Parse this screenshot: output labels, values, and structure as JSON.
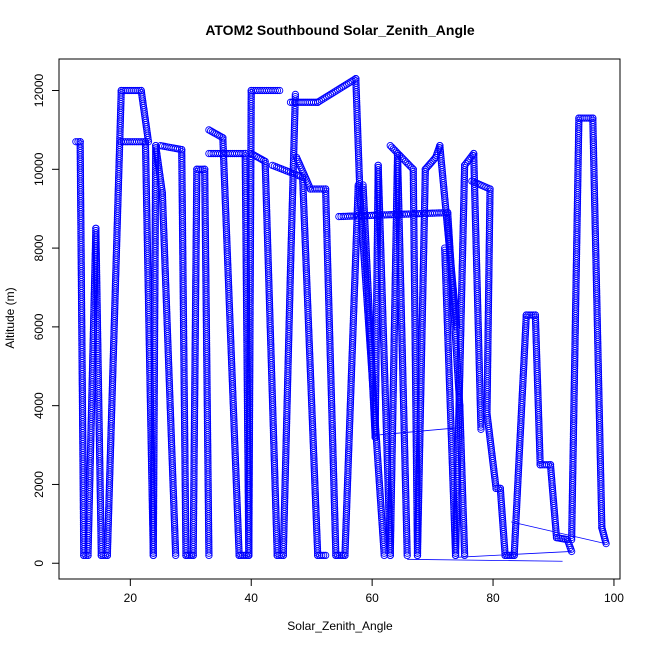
{
  "chart_data": {
    "type": "scatter",
    "title": "ATOM2 Southbound Solar_Zenith_Angle",
    "xlabel": "Solar_Zenith_Angle",
    "ylabel": "Altitude (m)",
    "xlim": [
      8.2,
      101
    ],
    "ylim": [
      -400,
      12800
    ],
    "xticks": [
      20,
      40,
      60,
      80,
      100
    ],
    "yticks": [
      0,
      2000,
      4000,
      6000,
      8000,
      10000,
      12000
    ],
    "grid": false,
    "point_color": "#0000ff",
    "marker": "open-circle",
    "profiles": [
      [
        [
          11.0,
          10700
        ],
        [
          11.7,
          10700
        ],
        [
          12.3,
          200
        ],
        [
          13.0,
          200
        ],
        [
          14.3,
          8500
        ]
      ],
      [
        [
          14.3,
          8500
        ],
        [
          15.2,
          200
        ],
        [
          16.2,
          200
        ],
        [
          18.5,
          12000
        ],
        [
          21.8,
          12000
        ],
        [
          23.0,
          10700
        ]
      ],
      [
        [
          18.5,
          10700
        ],
        [
          22.5,
          10700
        ],
        [
          23.8,
          200
        ],
        [
          24.2,
          10600
        ],
        [
          25.3,
          9400
        ],
        [
          27.5,
          200
        ]
      ],
      [
        [
          25.0,
          10600
        ],
        [
          28.5,
          10500
        ],
        [
          29.2,
          200
        ],
        [
          30.4,
          200
        ],
        [
          31.0,
          10000
        ],
        [
          32.3,
          10000
        ],
        [
          33.0,
          200
        ]
      ],
      [
        [
          33.0,
          11000
        ],
        [
          35.3,
          10800
        ],
        [
          38.0,
          200
        ],
        [
          39.5,
          200
        ]
      ],
      [
        [
          33.0,
          10400
        ],
        [
          39.0,
          10400
        ],
        [
          39.6,
          200
        ],
        [
          40.0,
          12000
        ],
        [
          44.7,
          12000
        ]
      ],
      [
        [
          40.0,
          10400
        ],
        [
          42.3,
          10200
        ],
        [
          44.3,
          200
        ],
        [
          45.3,
          200
        ],
        [
          46.5,
          7500
        ],
        [
          47.3,
          11900
        ]
      ],
      [
        [
          43.5,
          10100
        ],
        [
          48.5,
          9800
        ],
        [
          51.0,
          200
        ],
        [
          52.3,
          200
        ]
      ],
      [
        [
          46.5,
          11700
        ],
        [
          51.0,
          11700
        ],
        [
          57.3,
          12300
        ],
        [
          58.0,
          9300
        ],
        [
          62.0,
          200
        ]
      ],
      [
        [
          47.5,
          10300
        ],
        [
          49.8,
          9500
        ],
        [
          52.3,
          9500
        ],
        [
          54.0,
          200
        ],
        [
          55.5,
          200
        ],
        [
          57.7,
          9600
        ]
      ],
      [
        [
          54.5,
          8800
        ],
        [
          72.5,
          8900
        ],
        [
          74.5,
          4000
        ],
        [
          75.3,
          200
        ]
      ],
      [
        [
          58.5,
          9600
        ],
        [
          60.5,
          3200
        ],
        [
          61.0,
          10100
        ],
        [
          63.0,
          200
        ],
        [
          64.2,
          10400
        ],
        [
          65.8,
          200
        ]
      ],
      [
        [
          63.0,
          10600
        ],
        [
          66.8,
          10000
        ],
        [
          67.5,
          200
        ],
        [
          68.8,
          10000
        ],
        [
          70.5,
          10300
        ],
        [
          71.2,
          10600
        ],
        [
          74.0,
          6000
        ]
      ],
      [
        [
          72.0,
          8000
        ],
        [
          73.8,
          200
        ],
        [
          75.3,
          10100
        ],
        [
          76.8,
          10400
        ],
        [
          78.0,
          3400
        ]
      ],
      [
        [
          76.5,
          9700
        ],
        [
          79.5,
          9500
        ],
        [
          79.0,
          3800
        ],
        [
          80.5,
          1900
        ],
        [
          81.2,
          1900
        ],
        [
          82.0,
          200
        ],
        [
          83.5,
          200
        ],
        [
          85.5,
          6300
        ],
        [
          87.0,
          6300
        ],
        [
          87.8,
          2500
        ],
        [
          89.5,
          2500
        ],
        [
          90.5,
          650
        ],
        [
          92.3,
          600
        ],
        [
          93.0,
          300
        ]
      ],
      [
        [
          93.0,
          600
        ],
        [
          94.2,
          11300
        ],
        [
          96.5,
          11300
        ],
        [
          98.0,
          900
        ],
        [
          98.7,
          500
        ]
      ]
    ],
    "connector_lines": [
      [
        [
          60.5,
          3250
        ],
        [
          75.0,
          3450
        ]
      ],
      [
        [
          65.8,
          100
        ],
        [
          91.5,
          50
        ]
      ],
      [
        [
          74.0,
          150
        ],
        [
          93.0,
          300
        ]
      ],
      [
        [
          83.0,
          1050
        ],
        [
          98.5,
          500
        ]
      ]
    ]
  }
}
